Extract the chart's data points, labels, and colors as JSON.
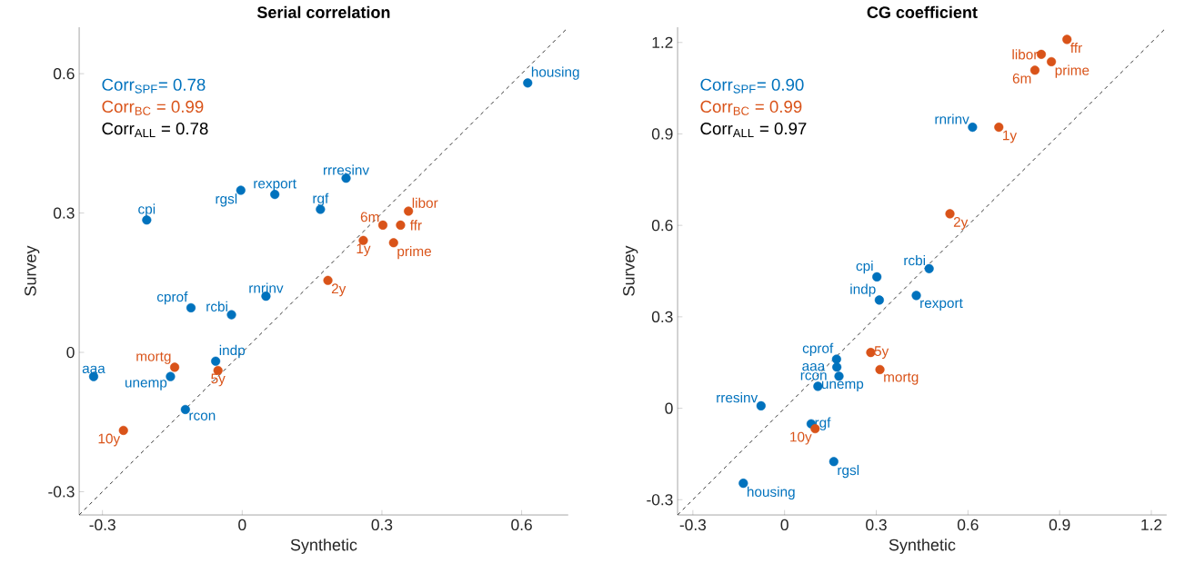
{
  "chart_data": [
    {
      "type": "scatter",
      "title": "Serial correlation",
      "xlabel": "Synthetic",
      "ylabel": "Survey",
      "xlim": [
        -0.35,
        0.7
      ],
      "ylim": [
        -0.35,
        0.7
      ],
      "xticks": [
        -0.3,
        0,
        0.3,
        0.6
      ],
      "yticks": [
        -0.3,
        0,
        0.3,
        0.6
      ],
      "series": [
        {
          "color": "#0072bd",
          "marker": "circle",
          "x": [
            0.613,
            0.223,
            -0.003,
            0.07,
            0.168,
            -0.205,
            -0.11,
            -0.023,
            0.051,
            -0.319,
            -0.154,
            -0.057,
            -0.122
          ],
          "values": [
            0.58,
            0.375,
            0.349,
            0.34,
            0.308,
            0.285,
            0.096,
            0.081,
            0.121,
            -0.052,
            -0.052,
            -0.019,
            -0.123
          ]
        },
        {
          "color": "#d95319",
          "marker": "circle",
          "x": [
            0.357,
            0.302,
            0.34,
            0.26,
            0.325,
            0.184,
            -0.145,
            -0.052,
            -0.255
          ],
          "values": [
            0.304,
            0.274,
            0.274,
            0.241,
            0.236,
            0.155,
            -0.032,
            -0.039,
            -0.168
          ]
        },
        {
          "type": "line",
          "line_style": "dashed",
          "marker": "none",
          "color": "#000000",
          "x": [
            -0.35,
            0.7
          ],
          "values": [
            -0.35,
            0.7
          ]
        }
      ],
      "annotations": [
        "Corr$_{SPF}$= 0.78",
        "Corr$_{BC}$ = 0.99",
        "Corr$_{ALL}$ = 0.78",
        {
          "text": "housing",
          "x": 0.613,
          "y": 0.58
        },
        {
          "text": "rrresinv",
          "x": 0.223,
          "y": 0.375
        },
        {
          "text": "rgsl",
          "x": -0.003,
          "y": 0.349
        },
        {
          "text": "rexport",
          "x": 0.07,
          "y": 0.34
        },
        {
          "text": "rgf",
          "x": 0.168,
          "y": 0.308
        },
        {
          "text": "cpi",
          "x": -0.205,
          "y": 0.285
        },
        {
          "text": "cprof",
          "x": -0.11,
          "y": 0.096
        },
        {
          "text": "rcbi",
          "x": -0.023,
          "y": 0.081
        },
        {
          "text": "rnrinv",
          "x": 0.051,
          "y": 0.121
        },
        {
          "text": "aaa",
          "x": -0.319,
          "y": -0.052
        },
        {
          "text": "unemp",
          "x": -0.154,
          "y": -0.052
        },
        {
          "text": "indp",
          "x": -0.057,
          "y": -0.019
        },
        {
          "text": "rcon",
          "x": -0.122,
          "y": -0.123
        },
        {
          "text": "libor",
          "x": 0.357,
          "y": 0.304
        },
        {
          "text": "6m",
          "x": 0.302,
          "y": 0.274
        },
        {
          "text": "ffr",
          "x": 0.34,
          "y": 0.274
        },
        {
          "text": "1y",
          "x": 0.26,
          "y": 0.241
        },
        {
          "text": "prime",
          "x": 0.325,
          "y": 0.236
        },
        {
          "text": "2y",
          "x": 0.184,
          "y": 0.155
        },
        {
          "text": "mortg",
          "x": -0.145,
          "y": -0.032
        },
        {
          "text": "5y",
          "x": -0.052,
          "y": -0.039
        },
        {
          "text": "10y",
          "x": -0.255,
          "y": -0.168
        }
      ]
    },
    {
      "type": "scatter",
      "title": "CG coefficient",
      "xlabel": "Synthetic",
      "ylabel": "Survey",
      "xlim": [
        -0.35,
        1.25
      ],
      "ylim": [
        -0.35,
        1.25
      ],
      "xticks": [
        -0.3,
        0,
        0.3,
        0.6,
        0.9,
        1.2
      ],
      "yticks": [
        -0.3,
        0,
        0.3,
        0.6,
        0.9,
        1.2
      ],
      "series": [
        {
          "color": "#0072bd",
          "marker": "circle",
          "x": [
            0.615,
            0.473,
            0.302,
            0.31,
            0.431,
            0.17,
            0.171,
            0.178,
            0.109,
            -0.077,
            0.087,
            0.161,
            -0.135
          ],
          "values": [
            0.922,
            0.458,
            0.431,
            0.355,
            0.37,
            0.161,
            0.135,
            0.105,
            0.072,
            0.008,
            -0.051,
            -0.175,
            -0.246
          ]
        },
        {
          "color": "#d95319",
          "marker": "circle",
          "x": [
            0.924,
            0.84,
            0.873,
            0.819,
            0.701,
            0.541,
            0.282,
            0.312,
            0.1
          ],
          "values": [
            1.21,
            1.161,
            1.137,
            1.109,
            0.922,
            0.638,
            0.183,
            0.127,
            -0.067
          ]
        },
        {
          "type": "line",
          "line_style": "dashed",
          "marker": "none",
          "color": "#000000",
          "x": [
            -0.35,
            1.25
          ],
          "values": [
            -0.35,
            1.25
          ]
        }
      ],
      "annotations": [
        "Corr$_{SPF}$= 0.90",
        "Corr$_{BC}$ = 0.99",
        "Corr$_{ALL}$ = 0.97",
        {
          "text": "rnrinv",
          "x": 0.615,
          "y": 0.922
        },
        {
          "text": "rcbi",
          "x": 0.473,
          "y": 0.458
        },
        {
          "text": "cpi",
          "x": 0.302,
          "y": 0.431
        },
        {
          "text": "indp",
          "x": 0.31,
          "y": 0.355
        },
        {
          "text": "rexport",
          "x": 0.431,
          "y": 0.37
        },
        {
          "text": "cprof",
          "x": 0.17,
          "y": 0.161
        },
        {
          "text": "aaa",
          "x": 0.171,
          "y": 0.135
        },
        {
          "text": "rcon",
          "x": 0.178,
          "y": 0.105
        },
        {
          "text": "unemp",
          "x": 0.109,
          "y": 0.072
        },
        {
          "text": "rresinv",
          "x": -0.077,
          "y": 0.008
        },
        {
          "text": "rgf",
          "x": 0.087,
          "y": -0.051
        },
        {
          "text": "rgsl",
          "x": 0.161,
          "y": -0.175
        },
        {
          "text": "housing",
          "x": -0.135,
          "y": -0.246
        },
        {
          "text": "ffr",
          "x": 0.924,
          "y": 1.21
        },
        {
          "text": "libor",
          "x": 0.84,
          "y": 1.161
        },
        {
          "text": "prime",
          "x": 0.873,
          "y": 1.137
        },
        {
          "text": "6m",
          "x": 0.819,
          "y": 1.109
        },
        {
          "text": "1y",
          "x": 0.701,
          "y": 0.922
        },
        {
          "text": "2y",
          "x": 0.541,
          "y": 0.638
        },
        {
          "text": "5y",
          "x": 0.282,
          "y": 0.183
        },
        {
          "text": "mortg",
          "x": 0.312,
          "y": 0.127
        },
        {
          "text": "10y",
          "x": 0.1,
          "y": -0.067
        }
      ]
    }
  ]
}
